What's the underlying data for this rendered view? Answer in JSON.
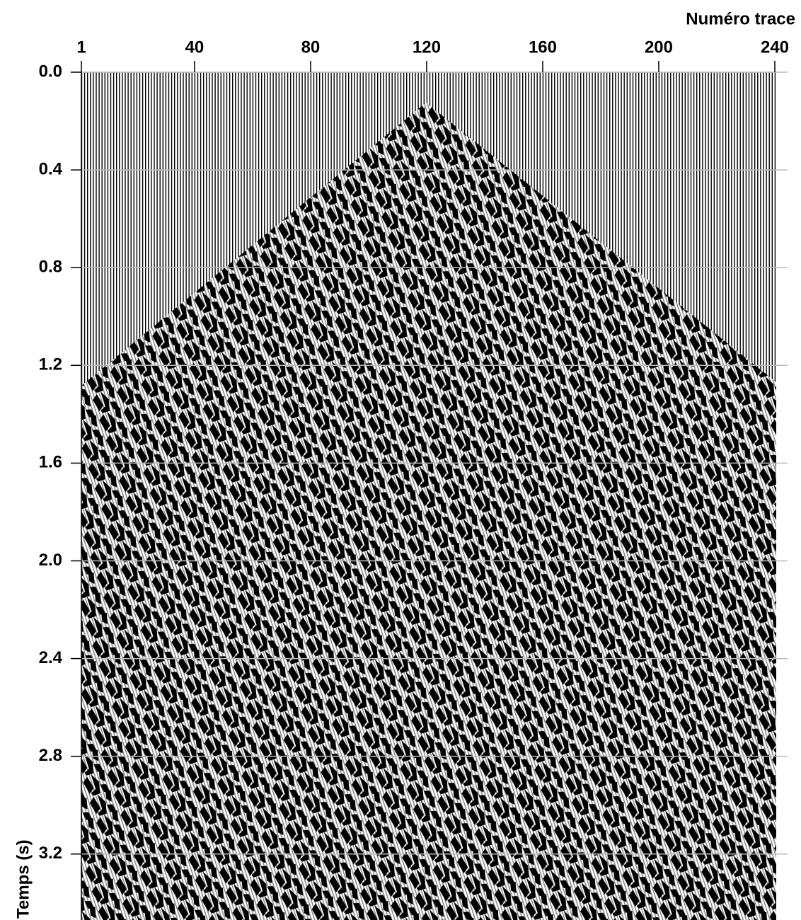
{
  "chart_data": {
    "type": "wiggle",
    "x_label": "Numéro trace",
    "y_label": "Temps (s)",
    "xlim": [
      1,
      240
    ],
    "xticks": [
      1,
      40,
      80,
      120,
      160,
      200,
      240
    ],
    "x_axis_position": "top",
    "ylim": [
      0,
      3.47
    ],
    "y_inverted": true,
    "yticks": [
      {
        "value": 0,
        "label": "0.0"
      },
      0.4,
      0.8,
      1.2,
      1.6,
      {
        "value": 2,
        "label": "2.0"
      },
      2.4,
      2.8,
      3.2
    ],
    "grid": true,
    "grid_color": "#bbbbbb",
    "color": "#000000"
  }
}
